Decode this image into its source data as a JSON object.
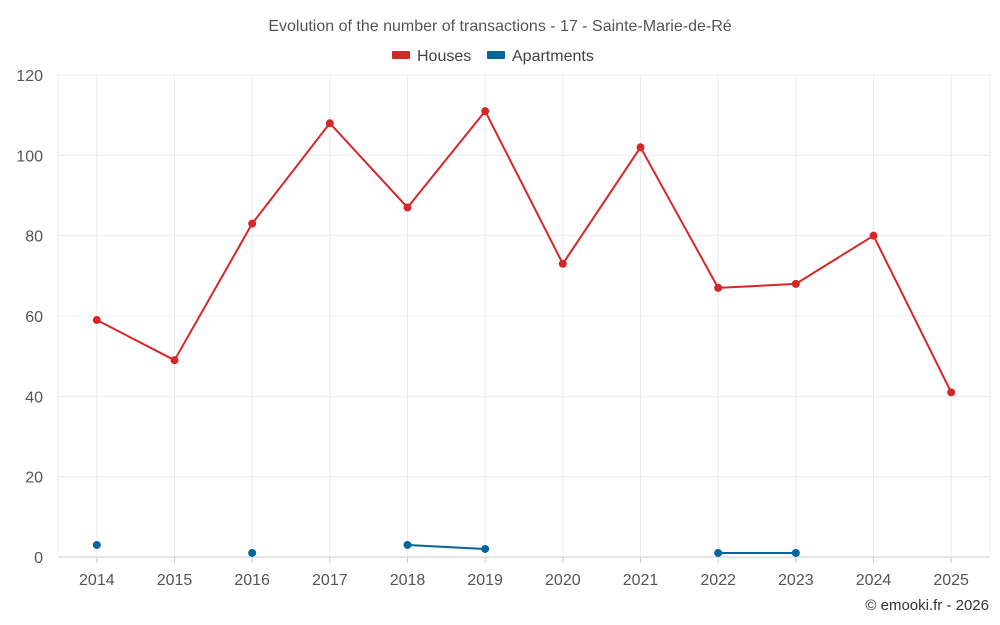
{
  "chart_data": {
    "type": "line",
    "title": "Evolution of the number of transactions - 17 - Sainte-Marie-de-Ré",
    "categories": [
      "2014",
      "2015",
      "2016",
      "2017",
      "2018",
      "2019",
      "2020",
      "2021",
      "2022",
      "2023",
      "2024",
      "2025"
    ],
    "series": [
      {
        "name": "Houses",
        "color": "#d62728",
        "values": [
          59,
          49,
          83,
          108,
          87,
          111,
          73,
          102,
          67,
          68,
          80,
          41
        ]
      },
      {
        "name": "Apartments",
        "color": "#03679c",
        "values": [
          3,
          null,
          1,
          null,
          3,
          2,
          null,
          null,
          1,
          1,
          null,
          null
        ]
      }
    ],
    "ylim": [
      0,
      120
    ],
    "yticks": [
      0,
      20,
      40,
      60,
      80,
      100,
      120
    ],
    "xlabel": "",
    "ylabel": "",
    "grid": true,
    "legend_position": "top-center"
  },
  "credit": "© emooki.fr - 2026"
}
